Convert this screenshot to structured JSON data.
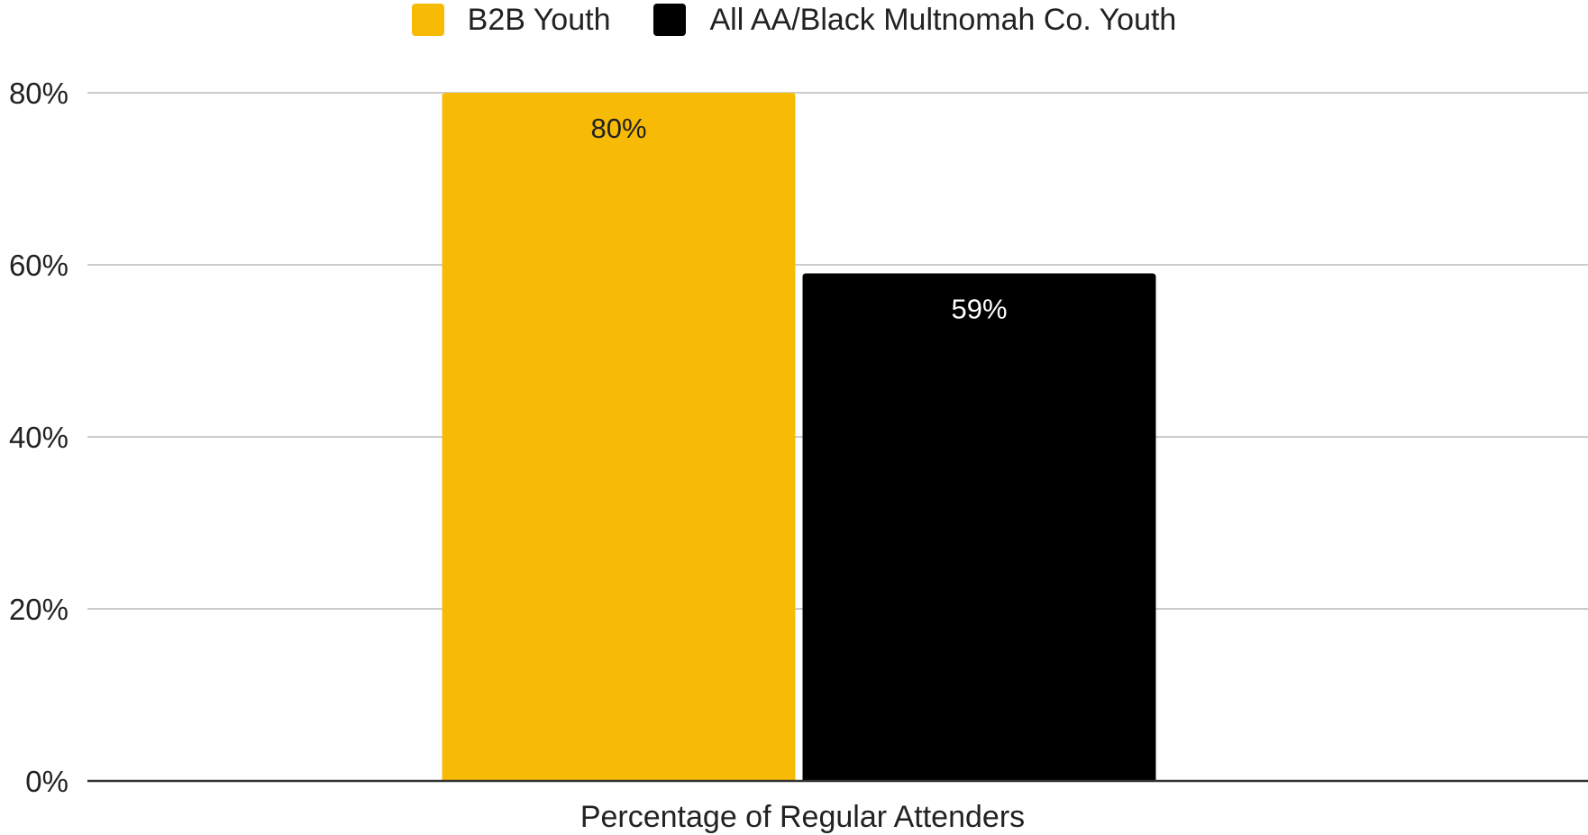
{
  "chart_data": {
    "type": "bar",
    "title": "",
    "xlabel": "",
    "ylabel": "",
    "categories": [
      "Percentage of Regular Attenders"
    ],
    "series": [
      {
        "name": "B2B Youth",
        "values": [
          80
        ],
        "color": "#F8BB05",
        "label_color": "#222222",
        "data_labels": [
          "80%"
        ]
      },
      {
        "name": "All AA/Black Multnomah Co. Youth",
        "values": [
          59
        ],
        "color": "#000000",
        "label_color": "#ffffff",
        "data_labels": [
          "59%"
        ]
      }
    ],
    "ylim": [
      0,
      80
    ],
    "yticks": [
      0,
      20,
      40,
      60,
      80
    ],
    "ytick_labels": [
      "0%",
      "20%",
      "40%",
      "60%",
      "80%"
    ],
    "grid": true,
    "legend_position": "top-center",
    "gridline_color": "#cccccc",
    "axis_color": "#333333"
  }
}
